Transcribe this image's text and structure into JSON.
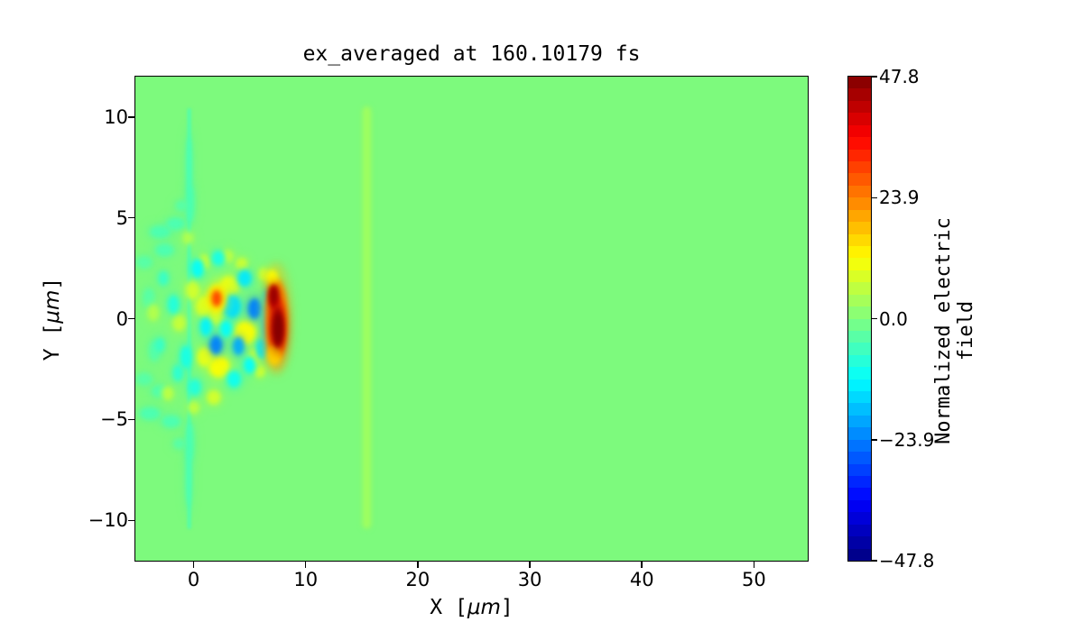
{
  "figure": {
    "title": "ex_averaged at 160.10179 fs"
  },
  "chart_data": {
    "type": "heatmap",
    "title": "ex_averaged at 160.10179 fs",
    "xlabel": "X [μm]",
    "ylabel": "Y [μm]",
    "xlabel_parts": {
      "pre": "X [",
      "unit": "μm",
      "post": "]"
    },
    "ylabel_parts": {
      "pre": "Y [",
      "unit": "μm",
      "post": "]"
    },
    "xlim": [
      -5.2,
      54.8
    ],
    "ylim": [
      -12,
      12
    ],
    "x_ticks": [
      {
        "v": 0,
        "label": "0"
      },
      {
        "v": 10,
        "label": "10"
      },
      {
        "v": 20,
        "label": "20"
      },
      {
        "v": 30,
        "label": "30"
      },
      {
        "v": 40,
        "label": "40"
      },
      {
        "v": 50,
        "label": "50"
      }
    ],
    "y_ticks": [
      {
        "v": 10,
        "label": "10"
      },
      {
        "v": 5,
        "label": "5"
      },
      {
        "v": 0,
        "label": "0"
      },
      {
        "v": -5,
        "label": "−5"
      },
      {
        "v": -10,
        "label": "−10"
      }
    ],
    "colormap": "jet",
    "levels": 40,
    "vmin": -47.8,
    "vmax": 47.8,
    "zero_color": "#7dfa7d",
    "grid": false,
    "colorbar": {
      "label": "Normalized electric field",
      "ticks": [
        {
          "v": 47.8,
          "label": "47.8"
        },
        {
          "v": 23.9,
          "label": "23.9"
        },
        {
          "v": 0,
          "label": "0.0"
        },
        {
          "v": -23.9,
          "label": "−23.9"
        },
        {
          "v": -47.8,
          "label": "−47.8"
        }
      ]
    },
    "background_value": 0.0,
    "vertical_line": {
      "x": -0.4,
      "y_from": -10.35,
      "y_to": 10.35,
      "width": 0.32,
      "v": -5
    },
    "vertical_stripe": {
      "x": 15.45,
      "y_from": -10.2,
      "y_to": 10.3,
      "width": 0.8,
      "v": 3.5
    },
    "features": [
      {
        "x": -3.0,
        "y": 4.3,
        "rx": 0.9,
        "ry": 0.3,
        "v": -5
      },
      {
        "x": -3.9,
        "y": -4.7,
        "rx": 0.9,
        "ry": 0.3,
        "v": -5
      },
      {
        "x": -1.6,
        "y": 4.7,
        "rx": 0.8,
        "ry": 0.3,
        "v": -5
      },
      {
        "x": -2.0,
        "y": -5.1,
        "rx": 0.8,
        "ry": 0.3,
        "v": -5
      },
      {
        "x": -4.4,
        "y": 2.8,
        "rx": 0.7,
        "ry": 0.3,
        "v": -4
      },
      {
        "x": -4.4,
        "y": -3.0,
        "rx": 0.7,
        "ry": 0.3,
        "v": -4
      },
      {
        "x": -2.6,
        "y": 3.4,
        "rx": 0.8,
        "ry": 0.3,
        "v": -5
      },
      {
        "x": -2.9,
        "y": -3.6,
        "rx": 0.8,
        "ry": 0.3,
        "v": -5
      },
      {
        "x": -4.0,
        "y": 1.0,
        "rx": 0.5,
        "ry": 0.5,
        "v": -4
      },
      {
        "x": -3.5,
        "y": -1.6,
        "rx": 0.5,
        "ry": 0.5,
        "v": -4
      },
      {
        "x": -0.3,
        "y": 5.7,
        "rx": 0.35,
        "ry": 0.9,
        "v": -5
      },
      {
        "x": -0.35,
        "y": -6.1,
        "rx": 0.35,
        "ry": 0.9,
        "v": -5
      },
      {
        "x": -0.4,
        "y": 7.6,
        "rx": 0.25,
        "ry": 1.4,
        "v": -5
      },
      {
        "x": -0.45,
        "y": -7.9,
        "rx": 0.25,
        "ry": 1.4,
        "v": -5
      },
      {
        "x": -1.1,
        "y": 5.6,
        "rx": 0.5,
        "ry": 0.25,
        "v": -4
      },
      {
        "x": -1.3,
        "y": -6.2,
        "rx": 0.5,
        "ry": 0.25,
        "v": -4
      },
      {
        "x": 3.2,
        "y": 1.6,
        "rx": 0.85,
        "ry": 0.5,
        "v": 10
      },
      {
        "x": 0.9,
        "y": 0.6,
        "rx": 0.7,
        "ry": 0.5,
        "v": 9
      },
      {
        "x": 4.6,
        "y": -0.7,
        "rx": 0.95,
        "ry": 0.55,
        "v": 12
      },
      {
        "x": 2.3,
        "y": -2.4,
        "rx": 0.9,
        "ry": 0.5,
        "v": 12
      },
      {
        "x": 5.5,
        "y": -1.9,
        "rx": 0.55,
        "ry": 0.4,
        "v": 10
      },
      {
        "x": -0.1,
        "y": 1.4,
        "rx": 0.6,
        "ry": 0.45,
        "v": 8
      },
      {
        "x": 0.9,
        "y": 2.8,
        "rx": 0.5,
        "ry": 0.35,
        "v": 9
      },
      {
        "x": -1.3,
        "y": -0.2,
        "rx": 0.55,
        "ry": 0.4,
        "v": 7
      },
      {
        "x": 1.0,
        "y": -1.9,
        "rx": 0.7,
        "ry": 0.45,
        "v": 10
      },
      {
        "x": 4.3,
        "y": 2.7,
        "rx": 0.5,
        "ry": 0.3,
        "v": 8
      },
      {
        "x": -2.3,
        "y": -3.7,
        "rx": 0.5,
        "ry": 0.35,
        "v": 6
      },
      {
        "x": -3.6,
        "y": 0.3,
        "rx": 0.5,
        "ry": 0.4,
        "v": 5
      },
      {
        "x": 1.8,
        "y": -3.9,
        "rx": 0.6,
        "ry": 0.35,
        "v": 8
      },
      {
        "x": 3.0,
        "y": 3.1,
        "rx": 0.5,
        "ry": 0.3,
        "v": 7
      },
      {
        "x": 6.2,
        "y": 2.2,
        "rx": 0.4,
        "ry": 0.3,
        "v": 7
      },
      {
        "x": 0.0,
        "y": -4.4,
        "rx": 0.5,
        "ry": 0.3,
        "v": 6
      },
      {
        "x": -0.5,
        "y": 4.0,
        "rx": 0.45,
        "ry": 0.3,
        "v": 5
      },
      {
        "x": 2.0,
        "y": 0.1,
        "rx": 0.6,
        "ry": 0.4,
        "v": 8
      },
      {
        "x": 5.9,
        "y": -2.6,
        "rx": 0.45,
        "ry": 0.3,
        "v": 8
      },
      {
        "x": 2.0,
        "y": -1.3,
        "rx": 0.55,
        "ry": 0.45,
        "v": -24
      },
      {
        "x": 4.0,
        "y": -1.35,
        "rx": 0.5,
        "ry": 0.45,
        "v": -20
      },
      {
        "x": 5.45,
        "y": 0.5,
        "rx": 0.6,
        "ry": 0.5,
        "v": -24
      },
      {
        "x": 3.4,
        "y": 0.6,
        "rx": 0.8,
        "ry": 0.55,
        "v": -15
      },
      {
        "x": 6.1,
        "y": -1.5,
        "rx": 0.5,
        "ry": 0.5,
        "v": -14
      },
      {
        "x": 4.55,
        "y": 2.0,
        "rx": 0.6,
        "ry": 0.4,
        "v": -14
      },
      {
        "x": 1.1,
        "y": -0.4,
        "rx": 0.5,
        "ry": 0.45,
        "v": -13
      },
      {
        "x": 0.35,
        "y": 2.5,
        "rx": 0.55,
        "ry": 0.45,
        "v": -12
      },
      {
        "x": -0.7,
        "y": -1.9,
        "rx": 0.5,
        "ry": 0.55,
        "v": -10
      },
      {
        "x": 2.2,
        "y": 3.0,
        "rx": 0.55,
        "ry": 0.35,
        "v": -10
      },
      {
        "x": 3.6,
        "y": -3.0,
        "rx": 0.6,
        "ry": 0.4,
        "v": -11
      },
      {
        "x": 0.1,
        "y": -3.4,
        "rx": 0.55,
        "ry": 0.4,
        "v": -9
      },
      {
        "x": -1.8,
        "y": 0.7,
        "rx": 0.5,
        "ry": 0.45,
        "v": -9
      },
      {
        "x": -1.4,
        "y": -2.7,
        "rx": 0.45,
        "ry": 0.4,
        "v": -8
      },
      {
        "x": -2.7,
        "y": 2.0,
        "rx": 0.45,
        "ry": 0.35,
        "v": -7
      },
      {
        "x": -3.0,
        "y": -1.3,
        "rx": 0.4,
        "ry": 0.35,
        "v": -7
      },
      {
        "x": 5.0,
        "y": -2.3,
        "rx": 0.5,
        "ry": 0.4,
        "v": -12
      },
      {
        "x": 2.9,
        "y": -0.5,
        "rx": 0.5,
        "ry": 0.4,
        "v": -12
      },
      {
        "x": 6.4,
        "y": -0.2,
        "rx": 0.35,
        "ry": 0.8,
        "v": -14
      },
      {
        "x": 6.5,
        "y": 1.0,
        "rx": 0.35,
        "ry": 0.45,
        "v": -12
      },
      {
        "x": 2.05,
        "y": 1.0,
        "rx": 0.85,
        "ry": 0.7,
        "v": 12
      },
      {
        "x": 2.05,
        "y": 1.0,
        "rx": 0.42,
        "ry": 0.38,
        "v": 30
      },
      {
        "x": 7.4,
        "y": 0.0,
        "rx": 1.0,
        "ry": 2.0,
        "v": 20
      },
      {
        "x": 7.45,
        "y": -0.4,
        "rx": 0.75,
        "ry": 1.5,
        "v": 30
      },
      {
        "x": 7.2,
        "y": -1.8,
        "rx": 0.6,
        "ry": 0.5,
        "v": 16
      },
      {
        "x": 7.0,
        "y": 2.0,
        "rx": 0.5,
        "ry": 0.4,
        "v": 12
      },
      {
        "x": 7.15,
        "y": 1.1,
        "rx": 0.42,
        "ry": 0.6,
        "v": 41
      },
      {
        "x": 7.5,
        "y": -0.45,
        "rx": 0.5,
        "ry": 1.0,
        "v": 44
      },
      {
        "x": 7.55,
        "y": -0.5,
        "rx": 0.38,
        "ry": 0.75,
        "v": 47.5
      },
      {
        "x": 7.15,
        "y": 1.15,
        "rx": 0.3,
        "ry": 0.42,
        "v": 46
      }
    ]
  }
}
